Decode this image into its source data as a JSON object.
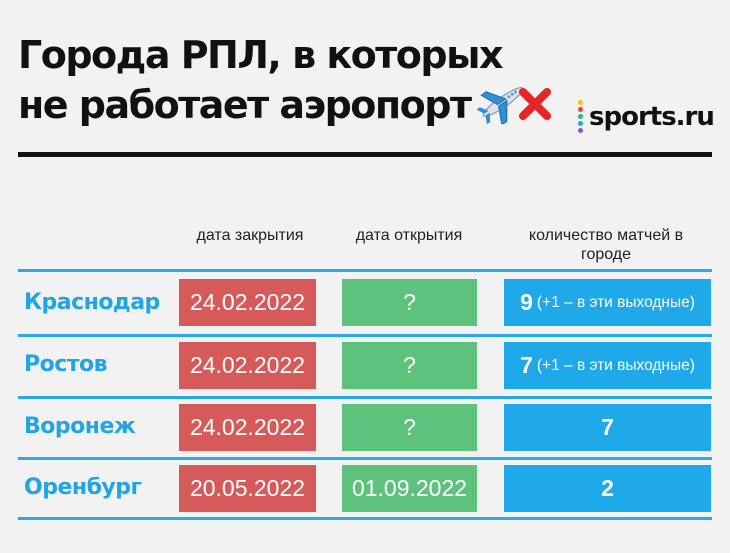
{
  "title": {
    "line1": "Города РПЛ, в которых",
    "line2": "не работает аэропорт"
  },
  "title_icons": [
    "airplane-icon",
    "red-cross-icon"
  ],
  "logo": {
    "text": "sports.ru",
    "dot_colors": [
      "#f6c200",
      "#e8433c",
      "#2eb872",
      "#1fa4e6",
      "#8a4fd6"
    ]
  },
  "columns": {
    "close_date": "дата закрытия",
    "open_date": "дата открытия",
    "matches": "количество матчей в городе"
  },
  "rows": [
    {
      "city": "Краснодар",
      "close": "24.02.2022",
      "open": "?",
      "count": "9",
      "note": "(+1 – в эти выходные)"
    },
    {
      "city": "Ростов",
      "close": "24.02.2022",
      "open": "?",
      "count": "7",
      "note": "(+1 – в эти выходные)"
    },
    {
      "city": "Воронеж",
      "close": "24.02.2022",
      "open": "?",
      "count": "7",
      "note": ""
    },
    {
      "city": "Оренбург",
      "close": "20.05.2022",
      "open": "01.09.2022",
      "count": "2",
      "note": ""
    }
  ],
  "colors": {
    "closed": "#d65a5a",
    "open": "#5ec17c",
    "count": "#1fa9e8",
    "city": "#1fa4e6",
    "line": "#2aa9e8"
  }
}
